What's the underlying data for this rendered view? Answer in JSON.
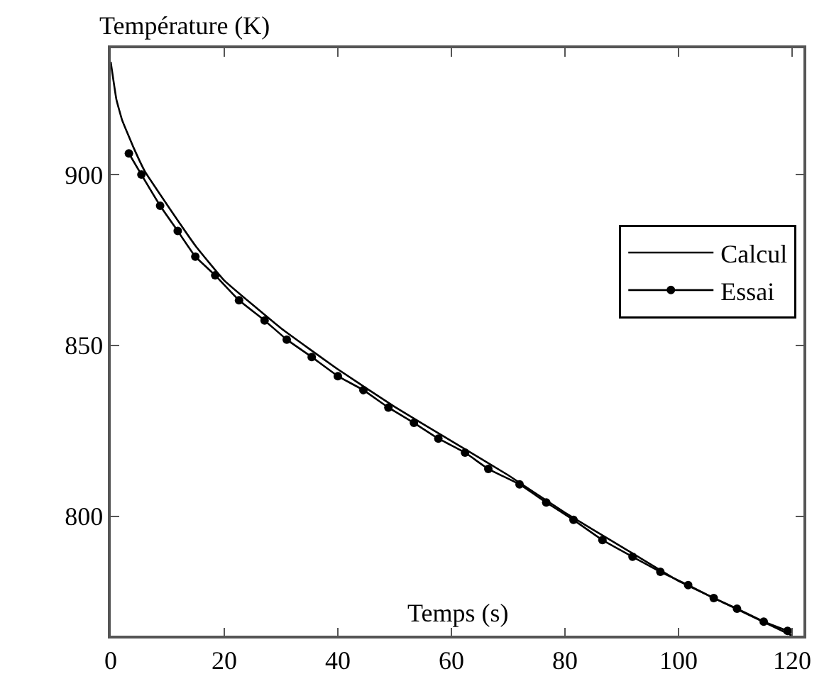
{
  "chart_data": {
    "type": "line",
    "xlabel": "Temps (s)",
    "ylabel": "Température (K)",
    "xlim": [
      0,
      122
    ],
    "xticks": [
      0,
      20,
      40,
      60,
      80,
      100,
      120
    ],
    "ylim": [
      765,
      937
    ],
    "yticks": [
      800,
      850,
      900
    ],
    "legend": "right",
    "series": [
      {
        "name": "Calcul",
        "color": "#000000",
        "marker": "none",
        "x": [
          0,
          1,
          2,
          4,
          6,
          10,
          15,
          20,
          30,
          40,
          50,
          60,
          70,
          80,
          90,
          100,
          110,
          120
        ],
        "values": [
          933,
          922,
          916,
          908,
          901,
          891,
          879,
          869,
          855,
          843,
          832,
          822,
          812,
          801,
          791,
          781,
          773,
          765
        ]
      },
      {
        "name": "Essai",
        "color": "#000000",
        "marker": "circle",
        "x": [
          3.2,
          5.4,
          8.7,
          11.8,
          14.9,
          18.4,
          22.6,
          27.1,
          31,
          35.4,
          40,
          44.5,
          48.9,
          53.4,
          57.7,
          62.4,
          66.5,
          72,
          76.7,
          81.5,
          86.6,
          91.9,
          96.8,
          101.7,
          106.2,
          110.3,
          115,
          119.2
        ],
        "values": [
          906.2,
          900,
          890.9,
          883.5,
          876,
          870.5,
          863.2,
          857.3,
          851.7,
          846.6,
          841,
          836.9,
          831.8,
          827.3,
          822.7,
          818.6,
          813.8,
          809.3,
          804,
          798.9,
          793,
          788.1,
          783.7,
          779.8,
          776,
          772.9,
          769.1,
          766.4
        ]
      }
    ]
  }
}
